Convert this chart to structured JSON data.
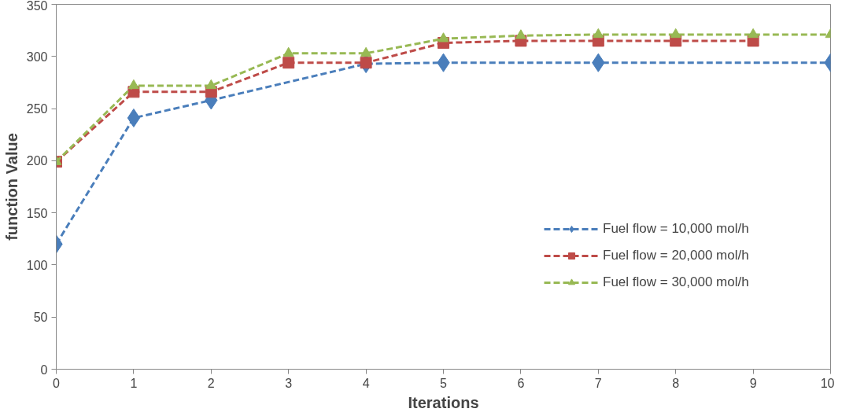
{
  "chart_data": {
    "type": "line",
    "xlabel": "Iterations",
    "ylabel": "function Value",
    "xlim": [
      0,
      10
    ],
    "ylim": [
      0,
      350
    ],
    "xticks": [
      0,
      1,
      2,
      3,
      4,
      5,
      6,
      7,
      8,
      9,
      10
    ],
    "yticks": [
      0,
      50,
      100,
      150,
      200,
      250,
      300,
      350
    ],
    "grid": false,
    "legend": "right",
    "line_style": "dashed",
    "series": [
      {
        "name": "Fuel flow = 10,000 mol/h",
        "color": "#4a7ebb",
        "marker": "diamond",
        "x": [
          0,
          1,
          2,
          4,
          5,
          7,
          10
        ],
        "values": [
          120,
          241,
          258,
          293,
          294,
          294,
          294
        ]
      },
      {
        "name": "Fuel flow = 20,000 mol/h",
        "color": "#be4b48",
        "marker": "square",
        "x": [
          0,
          1,
          2,
          3,
          4,
          5,
          6,
          7,
          8,
          9
        ],
        "values": [
          199,
          266,
          266,
          294,
          294,
          313,
          315,
          315,
          315,
          315
        ]
      },
      {
        "name": "Fuel flow = 30,000 mol/h",
        "color": "#98b954",
        "marker": "triangle",
        "x": [
          0,
          1,
          2,
          3,
          4,
          5,
          6,
          7,
          8,
          9,
          10
        ],
        "values": [
          199,
          272,
          272,
          303,
          303,
          317,
          320,
          321,
          321,
          321,
          321
        ]
      }
    ]
  }
}
